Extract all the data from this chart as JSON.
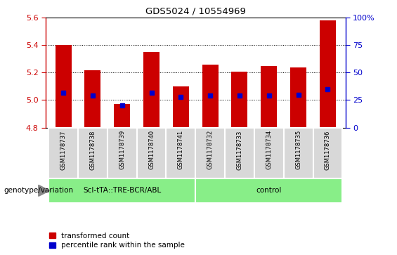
{
  "title": "GDS5024 / 10554969",
  "samples": [
    "GSM1178737",
    "GSM1178738",
    "GSM1178739",
    "GSM1178740",
    "GSM1178741",
    "GSM1178732",
    "GSM1178733",
    "GSM1178734",
    "GSM1178735",
    "GSM1178736"
  ],
  "transformed_count": [
    5.4,
    5.22,
    4.97,
    5.35,
    5.1,
    5.26,
    5.21,
    5.25,
    5.24,
    5.58
  ],
  "percentile_rank": [
    32,
    29,
    20,
    32,
    28,
    29,
    29,
    29,
    30,
    35
  ],
  "bar_bottom": 4.8,
  "ylim": [
    4.8,
    5.6
  ],
  "y2lim": [
    0,
    100
  ],
  "yticks": [
    4.8,
    5.0,
    5.2,
    5.4,
    5.6
  ],
  "y2ticks": [
    0,
    25,
    50,
    75,
    100
  ],
  "bar_color": "#cc0000",
  "percentile_color": "#0000cc",
  "group1_label": "Scl-tTA::TRE-BCR/ABL",
  "group2_label": "control",
  "group1_color": "#88ee88",
  "group2_color": "#88ee88",
  "group1_indices": [
    0,
    1,
    2,
    3,
    4
  ],
  "group2_indices": [
    5,
    6,
    7,
    8,
    9
  ],
  "legend_count_label": "transformed count",
  "legend_pct_label": "percentile rank within the sample",
  "bar_width": 0.55,
  "genotype_label": "genotype/variation",
  "bg_color": "#d8d8d8",
  "plot_bg_color": "#ffffff",
  "y_tick_color": "#cc0000",
  "y2_tick_color": "#0000cc"
}
